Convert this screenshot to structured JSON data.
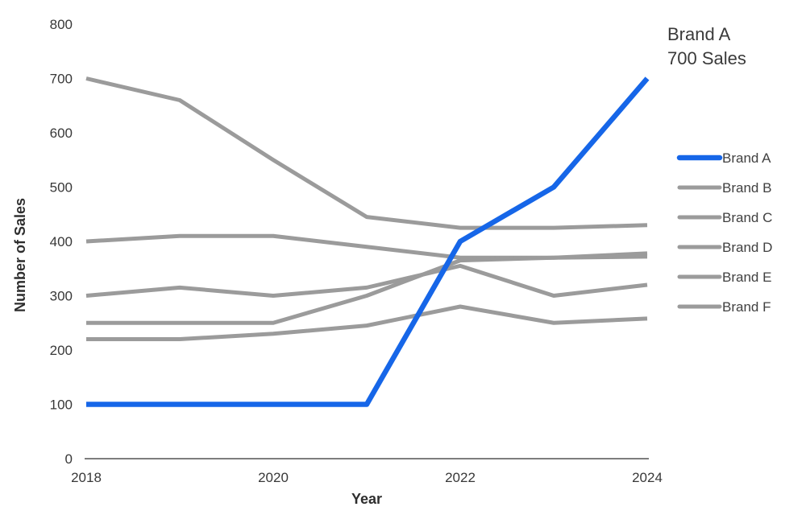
{
  "chart_data": {
    "type": "line",
    "title": "",
    "xlabel": "Year",
    "ylabel": "Number of Sales",
    "x": [
      2018,
      2019,
      2020,
      2021,
      2022,
      2023,
      2024
    ],
    "xticks": [
      "2018",
      "2020",
      "2022",
      "2024"
    ],
    "xtick_years": [
      2018,
      2020,
      2022,
      2024
    ],
    "yticks": [
      "0",
      "100",
      "200",
      "300",
      "400",
      "500",
      "600",
      "700",
      "800"
    ],
    "ylim": [
      0,
      800
    ],
    "xlim": [
      2018,
      2024
    ],
    "grid": false,
    "legend_position": "right",
    "series": [
      {
        "name": "Brand A",
        "color": "#1666E8",
        "width": 6.5,
        "highlight": true,
        "values": [
          100,
          100,
          100,
          100,
          400,
          500,
          700
        ]
      },
      {
        "name": "Brand B",
        "color": "#9B9B9B",
        "width": 5,
        "highlight": false,
        "values": [
          700,
          660,
          550,
          445,
          425,
          425,
          430
        ]
      },
      {
        "name": "Brand C",
        "color": "#9B9B9B",
        "width": 5,
        "highlight": false,
        "values": [
          400,
          410,
          410,
          390,
          370,
          370,
          372
        ]
      },
      {
        "name": "Brand D",
        "color": "#9B9B9B",
        "width": 5,
        "highlight": false,
        "values": [
          300,
          315,
          300,
          315,
          355,
          300,
          320
        ]
      },
      {
        "name": "Brand E",
        "color": "#9B9B9B",
        "width": 5,
        "highlight": false,
        "values": [
          250,
          250,
          250,
          300,
          365,
          370,
          378
        ]
      },
      {
        "name": "Brand F",
        "color": "#9B9B9B",
        "width": 5,
        "highlight": false,
        "values": [
          220,
          220,
          230,
          245,
          280,
          250,
          258
        ]
      }
    ],
    "annotation": {
      "line1": "Brand A",
      "line2": "700 Sales",
      "color": "#1666E8"
    }
  },
  "colors": {
    "highlight_blue": "#1666E8",
    "series_gray": "#9B9B9B",
    "axis_line": "#7D7D7D",
    "text_dark": "#383838"
  }
}
